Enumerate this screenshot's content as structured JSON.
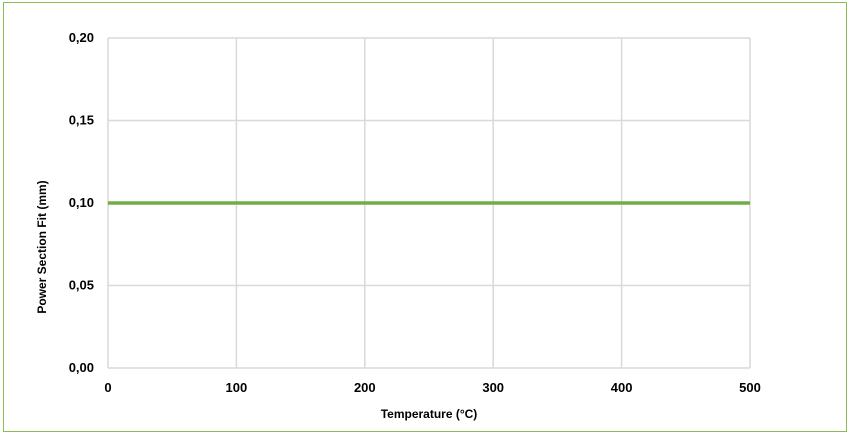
{
  "chart_data": {
    "type": "line",
    "xlabel": "Temperature (°C)",
    "ylabel": "Power Section Fit (mm)",
    "xlim": [
      0,
      500
    ],
    "ylim": [
      0,
      0.2
    ],
    "x_ticks": [
      "0",
      "100",
      "200",
      "300",
      "400",
      "500"
    ],
    "y_ticks": [
      "0,00",
      "0,05",
      "0,10",
      "0,15",
      "0,20"
    ],
    "grid": true,
    "series": [
      {
        "x": [
          0,
          500
        ],
        "y": [
          0.1,
          0.1
        ],
        "color": "#70ad47"
      }
    ],
    "colors": {
      "frame": "#8bbd55",
      "grid": "#d9d9d9",
      "line": "#70ad47"
    }
  }
}
